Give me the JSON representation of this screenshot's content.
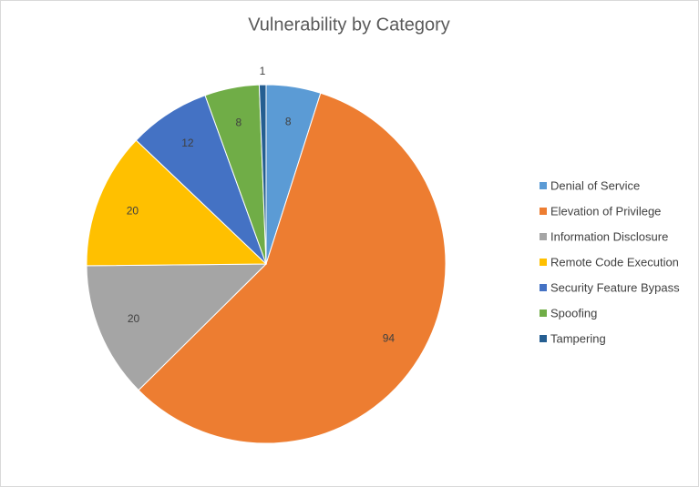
{
  "chart_data": {
    "type": "pie",
    "title": "Vulnerability by Category",
    "categories": [
      "Denial of Service",
      "Elevation of Privilege",
      "Information Disclosure",
      "Remote Code Execution",
      "Security Feature Bypass",
      "Spoofing",
      "Tampering"
    ],
    "values": [
      8,
      94,
      20,
      20,
      12,
      8,
      1
    ],
    "colors": [
      "#5b9bd5",
      "#ed7d31",
      "#a5a5a5",
      "#ffc000",
      "#4472c4",
      "#70ad47",
      "#255e91"
    ],
    "legend": "right"
  }
}
